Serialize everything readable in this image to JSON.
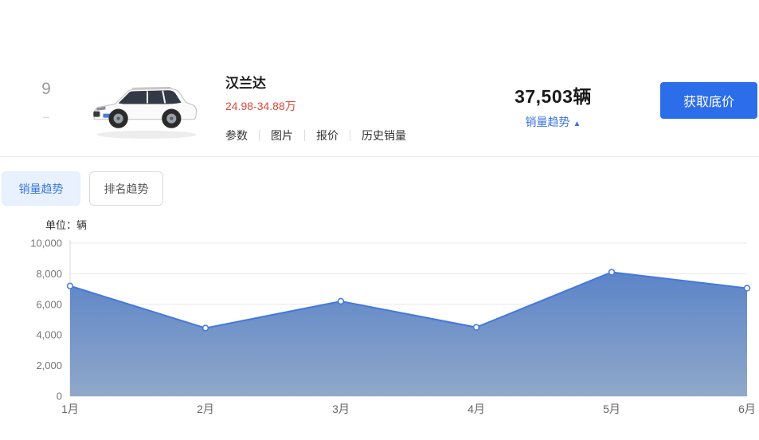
{
  "car_row": {
    "rank": "9",
    "rank_change": "–",
    "name": "汉兰达",
    "price_range": "24.98-34.88万",
    "links": [
      "参数",
      "图片",
      "报价",
      "历史销量"
    ],
    "sales_count": "37,503辆",
    "trend_toggle_label": "销量趋势",
    "trend_toggle_arrow": "▲",
    "cta_label": "获取底价"
  },
  "tabs": [
    {
      "label": "销量趋势",
      "active": true
    },
    {
      "label": "排名趋势",
      "active": false
    }
  ],
  "chart_data": {
    "type": "area",
    "title": "",
    "unit_label": "单位：辆",
    "categories": [
      "1月",
      "2月",
      "3月",
      "4月",
      "5月",
      "6月"
    ],
    "values": [
      7200,
      4450,
      6200,
      4500,
      8100,
      7053
    ],
    "xlabel": "",
    "ylabel": "辆",
    "ylim": [
      0,
      10000
    ],
    "yticks": [
      0,
      2000,
      4000,
      6000,
      8000,
      10000
    ],
    "grid": true,
    "legend": "none",
    "line_color": "#4478dd",
    "point_fill": "#ffffff",
    "fill_top": "#4f7bc4",
    "fill_bottom": "#8ca5c7",
    "grid_color": "#e7e7e7",
    "axis_color": "#d9d9d9",
    "tick_label_color": "#777777"
  },
  "colors": {
    "accent_blue": "#2c6de9",
    "link_blue": "#3b73e0",
    "price_red": "#e0483b",
    "active_tab_bg": "#e8f1fd"
  }
}
